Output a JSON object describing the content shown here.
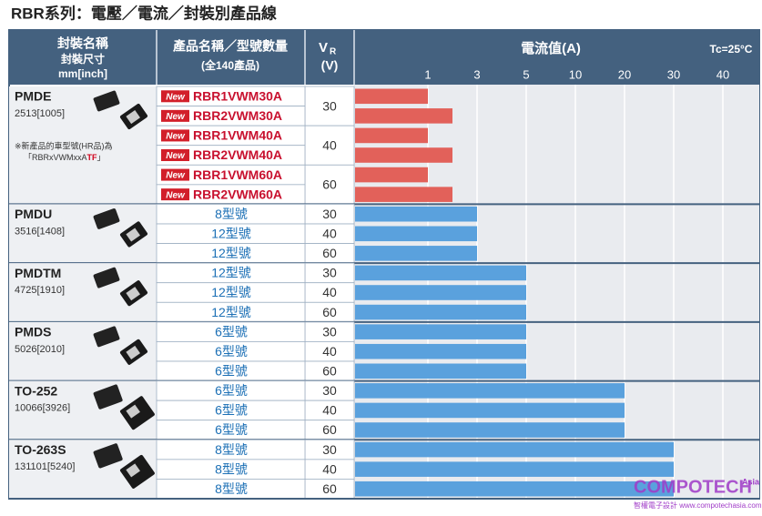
{
  "title": "RBR系列：電壓／電流／封裝別產品線",
  "table": {
    "headers": {
      "package": "封裝名稱",
      "package_size": "封裝尺寸",
      "package_unit": "mm[inch]",
      "product": "產品名稱／型號數量",
      "product_count": "(全140產品)",
      "vr": "V",
      "vr_sub": "R",
      "vr_unit": "(V)",
      "current": "電流值(A)",
      "condition": "Tc=25°C"
    },
    "axis": {
      "ticks": [
        1,
        3,
        5,
        10,
        20,
        30,
        40
      ]
    },
    "groups": [
      {
        "name": "PMDE",
        "size": "2513[1005]",
        "note": [
          "※新產品的車型號(HR品)為",
          "「RBRxVWMxxA",
          "TF",
          "」"
        ],
        "rows": [
          {
            "vr": 30,
            "items": [
              {
                "new": "New",
                "product": "RBR1VWM30A",
                "current": 1
              },
              {
                "new": "New",
                "product": "RBR2VWM30A",
                "current": 2
              }
            ]
          },
          {
            "vr": 40,
            "items": [
              {
                "new": "New",
                "product": "RBR1VWM40A",
                "current": 1
              },
              {
                "new": "New",
                "product": "RBR2VWM40A",
                "current": 2
              }
            ]
          },
          {
            "vr": 60,
            "items": [
              {
                "new": "New",
                "product": "RBR1VWM60A",
                "current": 1
              },
              {
                "new": "New",
                "product": "RBR2VWM60A",
                "current": 2
              }
            ]
          }
        ]
      },
      {
        "name": "PMDU",
        "size": "3516[1408]",
        "rows": [
          {
            "vr": 30,
            "items": [
              {
                "product": "8型號",
                "current": 3
              }
            ]
          },
          {
            "vr": 40,
            "items": [
              {
                "product": "12型號",
                "current": 3
              }
            ]
          },
          {
            "vr": 60,
            "items": [
              {
                "product": "12型號",
                "current": 3
              }
            ]
          }
        ]
      },
      {
        "name": "PMDTM",
        "size": "4725[1910]",
        "rows": [
          {
            "vr": 30,
            "items": [
              {
                "product": "12型號",
                "current": 5
              }
            ]
          },
          {
            "vr": 40,
            "items": [
              {
                "product": "12型號",
                "current": 5
              }
            ]
          },
          {
            "vr": 60,
            "items": [
              {
                "product": "12型號",
                "current": 5
              }
            ]
          }
        ]
      },
      {
        "name": "PMDS",
        "size": "5026[2010]",
        "rows": [
          {
            "vr": 30,
            "items": [
              {
                "product": "6型號",
                "current": 5
              }
            ]
          },
          {
            "vr": 40,
            "items": [
              {
                "product": "6型號",
                "current": 5
              }
            ]
          },
          {
            "vr": 60,
            "items": [
              {
                "product": "6型號",
                "current": 5
              }
            ]
          }
        ]
      },
      {
        "name": "TO-252",
        "size": "10066[3926]",
        "rows": [
          {
            "vr": 30,
            "items": [
              {
                "product": "6型號",
                "current": 20
              }
            ]
          },
          {
            "vr": 40,
            "items": [
              {
                "product": "6型號",
                "current": 20
              }
            ]
          },
          {
            "vr": 60,
            "items": [
              {
                "product": "6型號",
                "current": 20
              }
            ]
          }
        ]
      },
      {
        "name": "TO-263S",
        "size": "131101[5240]",
        "rows": [
          {
            "vr": 30,
            "items": [
              {
                "product": "8型號",
                "current": 30
              }
            ]
          },
          {
            "vr": 40,
            "items": [
              {
                "product": "8型號",
                "current": 30
              }
            ]
          },
          {
            "vr": 60,
            "items": [
              {
                "product": "8型號",
                "current": 30
              }
            ]
          }
        ]
      }
    ]
  },
  "watermark": {
    "brand": "COMPOTECH",
    "region": "Asia",
    "site": "智權電子設計 www.compotechasia.com"
  }
}
